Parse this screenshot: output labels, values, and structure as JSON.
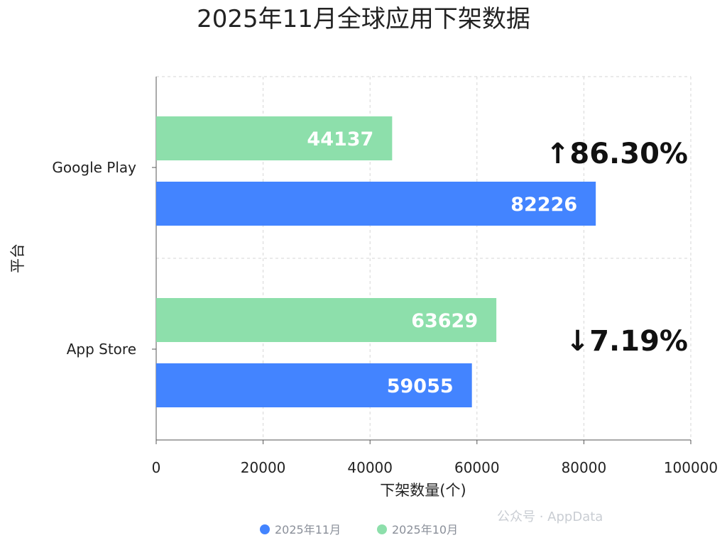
{
  "chart_data": {
    "type": "bar",
    "orientation": "horizontal",
    "title": "2025年11月全球应用下架数据",
    "xlabel": "下架数量(个)",
    "ylabel": "平台",
    "categories": [
      "Google Play",
      "App Store"
    ],
    "series": [
      {
        "name": "2025年10月",
        "values": [
          44137,
          63629
        ],
        "color": "#8ddfab"
      },
      {
        "name": "2025年11月",
        "values": [
          82226,
          59055
        ],
        "color": "#4384ff"
      }
    ],
    "changes": [
      "↑86.30%",
      "↓7.19%"
    ],
    "xlim": [
      0,
      100000
    ],
    "xticks": [
      "0",
      "20000",
      "40000",
      "60000",
      "80000",
      "100000"
    ],
    "grid": true,
    "legend": {
      "position": "bottom",
      "items": [
        {
          "label": "2025年11月",
          "color": "#4384ff"
        },
        {
          "label": "2025年10月",
          "color": "#8ddfab"
        }
      ]
    }
  },
  "watermark": "公众号 · AppData"
}
